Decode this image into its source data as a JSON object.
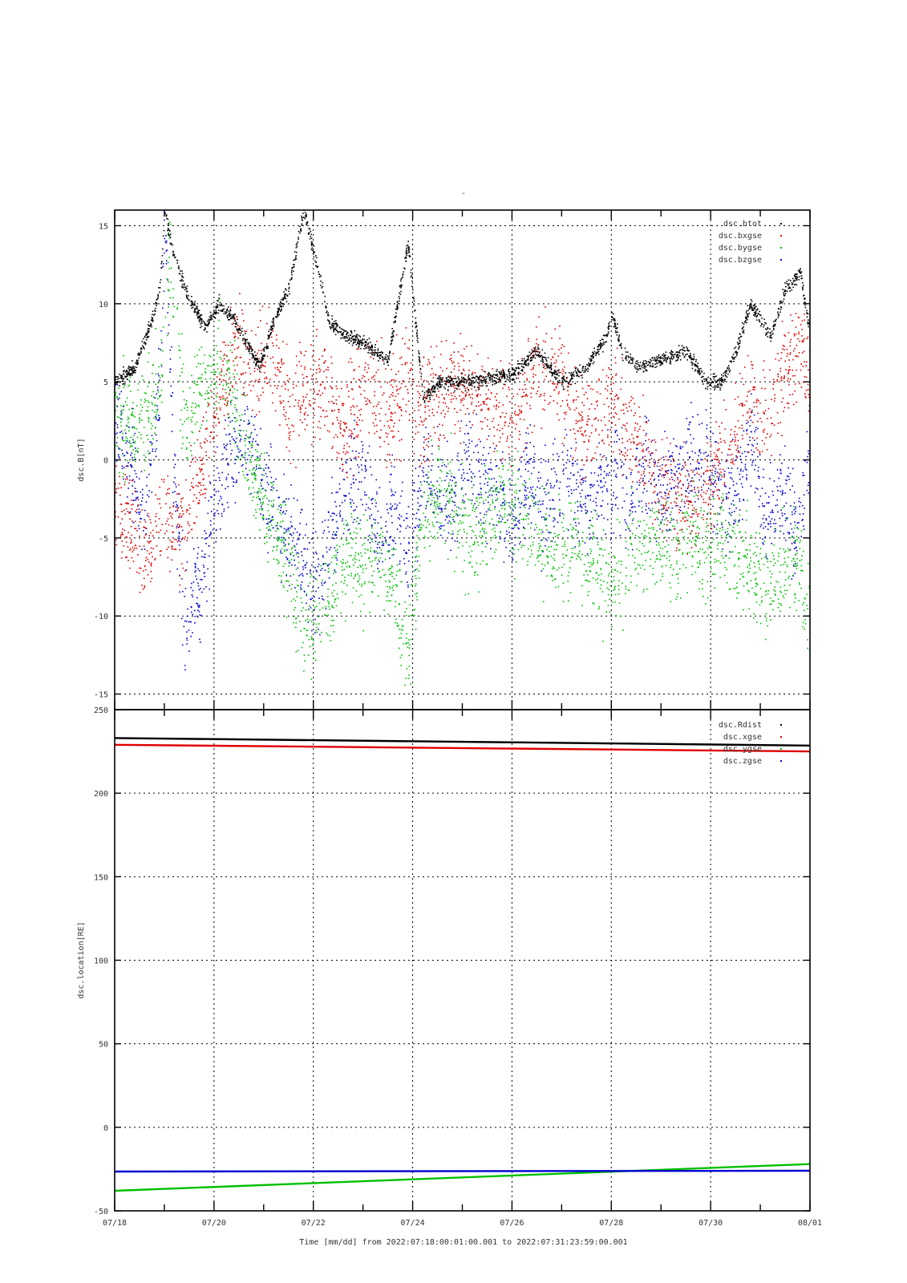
{
  "figure": {
    "top_mark": "-",
    "xlabel": "Time [mm/dd]  from 2022:07:18:00:01:00.001  to  2022:07:31:23:59:00.001",
    "x_tick_labels": [
      "07/18",
      "07/20",
      "07/22",
      "07/24",
      "07/26",
      "07/28",
      "07/30",
      "08/01"
    ],
    "x_tick_days": [
      0,
      2,
      4,
      6,
      8,
      10,
      12,
      14
    ]
  },
  "chart_data": [
    {
      "type": "scatter",
      "ylabel": "dsc.B[nT]",
      "xlim": [
        "07/18",
        "08/01"
      ],
      "ylim": [
        -16,
        16
      ],
      "y_ticks": [
        15,
        10,
        5,
        0,
        -5,
        -10,
        -15
      ],
      "grid": true,
      "legend_position": "top-right",
      "series": [
        {
          "name": "dsc.btot",
          "color": "#000000",
          "x_days": [
            0,
            0.4,
            0.7,
            0.9,
            1.0,
            1.15,
            1.4,
            1.8,
            2.1,
            2.4,
            2.9,
            3.2,
            3.5,
            3.8,
            4.1,
            4.3,
            4.6,
            5.0,
            5.5,
            5.9,
            6.2,
            6.5,
            7.0,
            7.5,
            8.0,
            8.5,
            9.0,
            9.5,
            9.9,
            10.0,
            10.2,
            10.5,
            11.0,
            11.5,
            11.9,
            12.2,
            12.5,
            12.8,
            13.2,
            13.5,
            13.8,
            14.0
          ],
          "values": [
            5,
            6,
            8.5,
            11,
            16,
            13.5,
            11,
            8.5,
            10,
            9,
            6,
            9,
            11,
            16,
            12,
            9,
            8,
            7.5,
            6.5,
            14,
            4,
            5,
            5,
            5.2,
            5.5,
            7,
            5,
            6,
            8,
            9.5,
            7,
            6,
            6.5,
            7,
            5,
            5,
            7,
            10,
            8,
            11,
            12,
            8
          ]
        },
        {
          "name": "dsc.bxgse",
          "color": "#e00000",
          "x_days": [
            0,
            0.4,
            0.7,
            0.9,
            1.2,
            1.5,
            1.8,
            2.1,
            2.4,
            2.9,
            3.2,
            3.5,
            3.8,
            4.2,
            4.6,
            5.0,
            5.5,
            5.9,
            6.2,
            6.5,
            7.0,
            7.5,
            8.0,
            8.5,
            9.0,
            9.5,
            10.0,
            10.5,
            11.0,
            11.5,
            11.9,
            12.2,
            12.5,
            12.8,
            13.2,
            13.5,
            13.8,
            14.0
          ],
          "values": [
            -2,
            -5,
            -6,
            -3,
            -5,
            -3,
            0,
            4,
            7,
            6,
            7,
            3,
            4,
            5,
            2,
            5,
            3,
            5,
            3,
            4.5,
            4.5,
            4,
            2,
            6.5,
            5,
            2,
            4,
            1,
            -1,
            -3,
            -2,
            0,
            2,
            4,
            3,
            6,
            7,
            5
          ]
        },
        {
          "name": "dsc.bygse",
          "color": "#00c000",
          "x_days": [
            0,
            0.3,
            0.6,
            0.9,
            1.1,
            1.4,
            1.7,
            2.0,
            2.3,
            2.6,
            2.9,
            3.2,
            3.5,
            3.8,
            4.1,
            4.4,
            4.7,
            5.0,
            5.3,
            5.6,
            5.9,
            6.2,
            6.5,
            6.8,
            7.1,
            7.4,
            7.7,
            8.0,
            8.3,
            8.6,
            8.9,
            9.2,
            9.5,
            9.8,
            10.1,
            10.4,
            10.7,
            11.0,
            11.3,
            11.6,
            11.9,
            12.2,
            12.5,
            12.8,
            13.1,
            13.4,
            13.7,
            14.0
          ],
          "values": [
            2,
            3,
            2,
            5,
            13,
            2,
            4,
            6,
            5,
            1,
            -2,
            -4,
            -7,
            -11,
            -10,
            -8,
            -6,
            -7,
            -5,
            -8,
            -12,
            -3,
            -2,
            -3,
            -5,
            -4,
            -3,
            -3,
            -4,
            -5,
            -6,
            -5,
            -6,
            -7,
            -8,
            -6,
            -5,
            -5,
            -6,
            -5,
            -6,
            -4,
            -6,
            -7,
            -8,
            -7,
            -6,
            -10
          ]
        },
        {
          "name": "dsc.bzgse",
          "color": "#0000d0",
          "x_days": [
            0,
            0.3,
            0.6,
            0.9,
            1.0,
            1.2,
            1.4,
            1.7,
            2.0,
            2.3,
            2.6,
            2.9,
            3.2,
            3.5,
            3.8,
            4.1,
            4.4,
            4.7,
            5.0,
            5.3,
            5.6,
            5.9,
            6.2,
            6.5,
            6.8,
            7.1,
            7.4,
            7.7,
            8.0,
            8.3,
            8.6,
            8.9,
            9.2,
            9.5,
            9.8,
            10.1,
            10.4,
            10.7,
            11.0,
            11.3,
            11.6,
            11.9,
            12.2,
            12.5,
            12.8,
            13.1,
            13.4,
            13.7,
            14.0
          ],
          "values": [
            3,
            0,
            -4,
            5,
            15,
            -2,
            -10,
            -8,
            -3,
            0,
            2,
            -1,
            -3,
            -5,
            -7,
            -8,
            -4,
            -2,
            -1,
            -5,
            -3,
            -6,
            -1,
            -2,
            -3,
            0,
            -1,
            -2,
            -4,
            -1,
            -3,
            -2,
            -1,
            -3,
            -2,
            -1,
            -3,
            0,
            -2,
            -1,
            0,
            1,
            -3,
            -2,
            2,
            -4,
            -2,
            -5,
            1
          ]
        }
      ]
    },
    {
      "type": "line",
      "ylabel": "dsc.location[RE]",
      "xlim": [
        "07/18",
        "08/01"
      ],
      "ylim": [
        -50,
        250
      ],
      "y_ticks": [
        250,
        200,
        150,
        100,
        50,
        0,
        -50
      ],
      "grid": true,
      "legend_position": "top-right",
      "series": [
        {
          "name": "dsc.Rdist",
          "color": "#000000",
          "x_days": [
            0,
            14
          ],
          "values": [
            233,
            228.5
          ]
        },
        {
          "name": "dsc.xgse",
          "color": "#e00000",
          "x_days": [
            0,
            14
          ],
          "values": [
            229,
            225
          ]
        },
        {
          "name": "dsc.ygse",
          "color": "#00c000",
          "x_days": [
            0,
            14
          ],
          "values": [
            -38,
            -22
          ]
        },
        {
          "name": "dsc.zgse",
          "color": "#0000d0",
          "x_days": [
            0,
            14
          ],
          "values": [
            -26.5,
            -26
          ]
        }
      ]
    }
  ]
}
